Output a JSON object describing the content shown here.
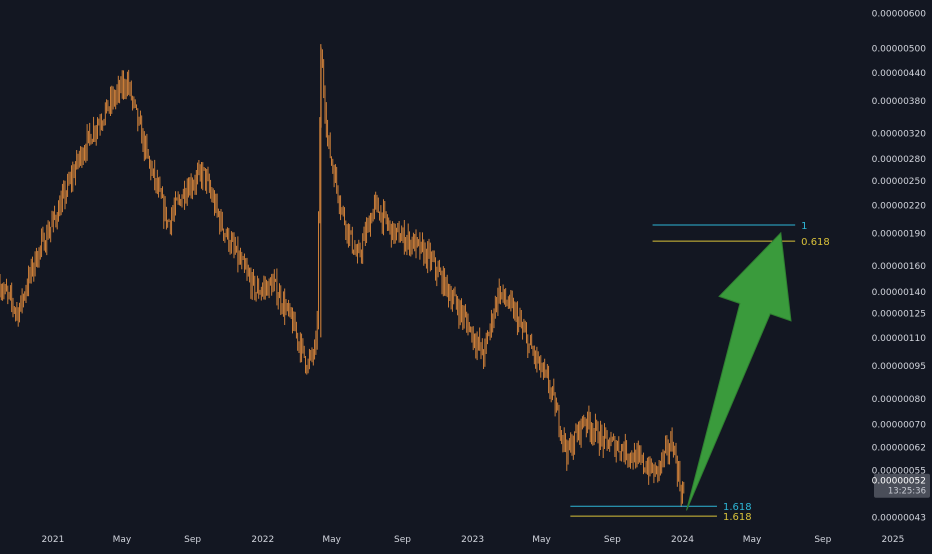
{
  "chart_data": {
    "type": "candlestick",
    "scale": "log",
    "grid": false,
    "ylim": [
      4.3e-08,
      6e-07
    ],
    "y_ticks": [
      "0.00000600",
      "0.00000500",
      "0.00000440",
      "0.00000380",
      "0.00000320",
      "0.00000280",
      "0.00000250",
      "0.00000220",
      "0.00000190",
      "0.00000160",
      "0.00000140",
      "0.00000125",
      "0.00000110",
      "0.00000095",
      "0.00000080",
      "0.00000070",
      "0.00000062",
      "0.00000055",
      "0.00000043"
    ],
    "y_tick_values": [
      6e-07,
      5e-07,
      4.4e-07,
      3.8e-07,
      3.2e-07,
      2.8e-07,
      2.5e-07,
      2.2e-07,
      1.9e-07,
      1.6e-07,
      1.4e-07,
      1.25e-07,
      1.1e-07,
      9.5e-08,
      8e-08,
      7e-08,
      6.2e-08,
      5.5e-08,
      4.3e-08
    ],
    "x_ticks": [
      "2021",
      "May",
      "Sep",
      "2022",
      "May",
      "Sep",
      "2023",
      "May",
      "Sep",
      "2024",
      "May",
      "Sep",
      "2025"
    ],
    "x_tick_dates": [
      "2021-01-01",
      "2021-05-01",
      "2021-09-01",
      "2022-01-01",
      "2022-05-01",
      "2022-09-01",
      "2023-01-01",
      "2023-05-01",
      "2023-09-01",
      "2024-01-01",
      "2024-05-01",
      "2024-09-01",
      "2025-01-01"
    ],
    "x_range": [
      "2020-10-01",
      "2025-03-10"
    ],
    "price_series": [
      [
        "2020-10-01",
        1.45e-07
      ],
      [
        "2020-11-01",
        1.25e-07
      ],
      [
        "2020-12-01",
        1.65e-07
      ],
      [
        "2021-01-15",
        2.2e-07
      ],
      [
        "2021-02-15",
        2.8e-07
      ],
      [
        "2021-03-15",
        3.3e-07
      ],
      [
        "2021-04-15",
        3.8e-07
      ],
      [
        "2021-05-10",
        4.2e-07
      ],
      [
        "2021-06-15",
        2.8e-07
      ],
      [
        "2021-07-20",
        2e-07
      ],
      [
        "2021-08-20",
        2.4e-07
      ],
      [
        "2021-09-20",
        2.6e-07
      ],
      [
        "2021-10-20",
        2e-07
      ],
      [
        "2021-11-20",
        1.65e-07
      ],
      [
        "2021-12-20",
        1.4e-07
      ],
      [
        "2022-01-20",
        1.45e-07
      ],
      [
        "2022-02-20",
        1.2e-07
      ],
      [
        "2022-03-20",
        9.5e-08
      ],
      [
        "2022-04-05",
        1.05e-07
      ],
      [
        "2022-04-12",
        4.9e-07
      ],
      [
        "2022-04-25",
        3e-07
      ],
      [
        "2022-05-20",
        2.1e-07
      ],
      [
        "2022-06-15",
        1.65e-07
      ],
      [
        "2022-07-15",
        2.2e-07
      ],
      [
        "2022-08-15",
        1.9e-07
      ],
      [
        "2022-09-20",
        1.8e-07
      ],
      [
        "2022-10-20",
        1.65e-07
      ],
      [
        "2022-11-20",
        1.4e-07
      ],
      [
        "2022-12-20",
        1.2e-07
      ],
      [
        "2023-01-20",
        1e-07
      ],
      [
        "2023-02-15",
        1.4e-07
      ],
      [
        "2023-03-15",
        1.25e-07
      ],
      [
        "2023-04-10",
        1.05e-07
      ],
      [
        "2023-05-15",
        8.5e-08
      ],
      [
        "2023-06-15",
        6e-08
      ],
      [
        "2023-07-15",
        7.2e-08
      ],
      [
        "2023-08-15",
        6.4e-08
      ],
      [
        "2023-09-15",
        6.2e-08
      ],
      [
        "2023-10-15",
        5.8e-08
      ],
      [
        "2023-11-15",
        5.4e-08
      ],
      [
        "2023-12-15",
        6.4e-08
      ],
      [
        "2023-12-31",
        4.8e-08
      ],
      [
        "2024-01-05",
        5.2e-08
      ]
    ],
    "current_price": {
      "label": "0.00000052",
      "value": 5.2e-08,
      "countdown": "13:25:36"
    },
    "fib_levels": [
      {
        "label": "1",
        "value": 1.98e-07,
        "color": "#2eb6d6",
        "from": "2023-11-10",
        "to": "2024-07-15"
      },
      {
        "label": "0.618",
        "value": 1.82e-07,
        "color": "#d9c13a",
        "from": "2023-11-10",
        "to": "2024-07-15"
      },
      {
        "label": "1.618",
        "value": 4.55e-08,
        "color": "#2eb6d6",
        "from": "2023-06-20",
        "to": "2024-03-01"
      },
      {
        "label": "1.618",
        "value": 4.32e-08,
        "color": "#d9c13a",
        "from": "2023-06-20",
        "to": "2024-03-01"
      }
    ],
    "arrow": {
      "from": [
        "2024-01-08",
        4.45e-08
      ],
      "to": [
        "2024-06-20",
        1.9e-07
      ],
      "color": "#3a9b3c"
    },
    "colors": {
      "background": "#131722",
      "candle": "#e08a3c",
      "axis_text": "#d1d4dc",
      "price_badge": "#4a4e59"
    }
  }
}
